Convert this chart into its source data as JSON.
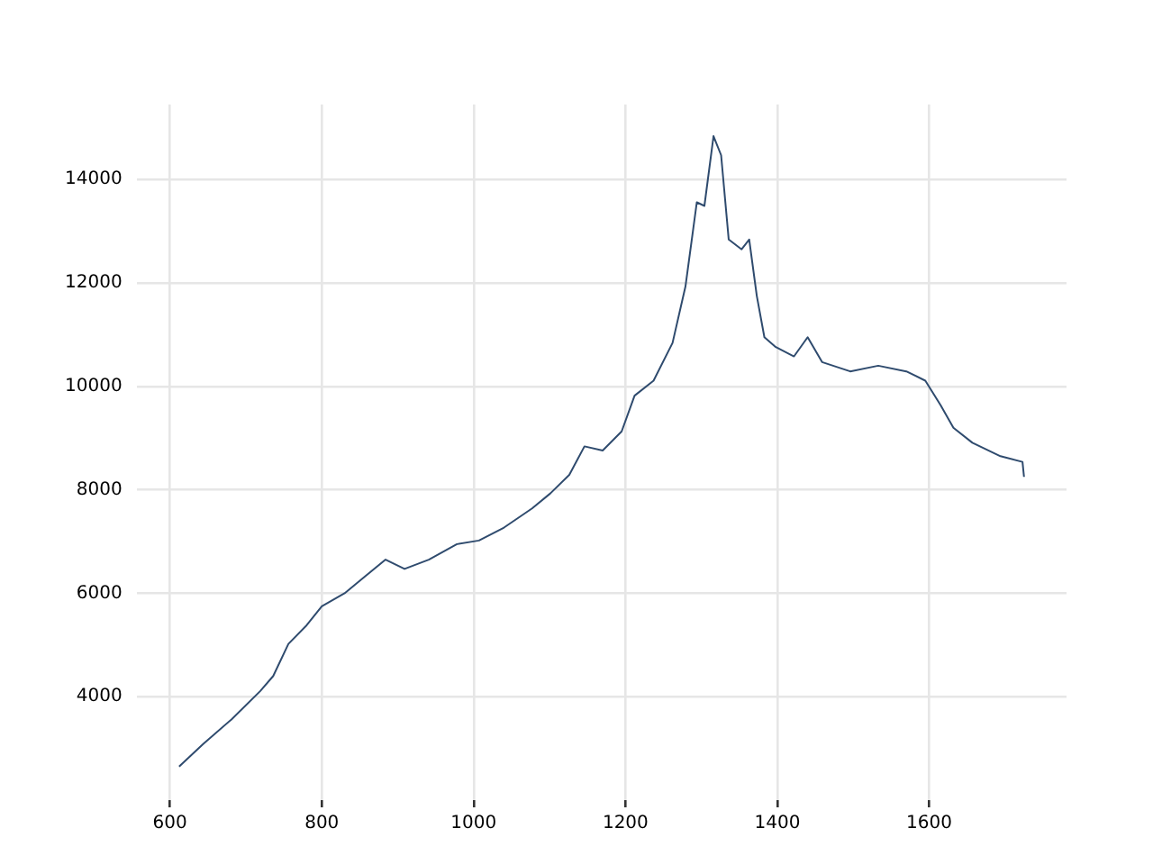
{
  "chart_data": {
    "type": "line",
    "x": [
      612,
      644,
      681,
      719,
      736,
      756,
      780,
      800,
      830,
      854,
      884,
      909,
      941,
      978,
      1007,
      1040,
      1077,
      1101,
      1126,
      1146,
      1170,
      1195,
      1212,
      1237,
      1262,
      1279,
      1294,
      1304,
      1316,
      1326,
      1336,
      1353,
      1363,
      1373,
      1383,
      1398,
      1422,
      1440,
      1459,
      1496,
      1533,
      1570,
      1595,
      1615,
      1632,
      1657,
      1694,
      1723,
      1725
    ],
    "series": [
      {
        "color": "#2f4b6e",
        "values": [
          2650,
          3090,
          3560,
          4110,
          4400,
          5020,
          5380,
          5750,
          6000,
          6290,
          6650,
          6470,
          6650,
          6950,
          7020,
          7270,
          7640,
          7930,
          8290,
          8840,
          8760,
          9130,
          9820,
          10110,
          10840,
          11930,
          13560,
          13490,
          14840,
          14470,
          12840,
          12650,
          12840,
          11750,
          10950,
          10760,
          10580,
          10950,
          10470,
          10290,
          10400,
          10290,
          10110,
          9640,
          9200,
          8910,
          8650,
          8540,
          8250
        ]
      }
    ],
    "xlim": [
      556,
      1781
    ],
    "ylim": [
      2000,
      15450
    ],
    "xticks": [
      600,
      800,
      1000,
      1200,
      1400,
      1600
    ],
    "yticks": [
      4000,
      6000,
      8000,
      10000,
      12000,
      14000
    ],
    "grid": true,
    "legend": false,
    "marker": "none",
    "line_style": "solid"
  }
}
